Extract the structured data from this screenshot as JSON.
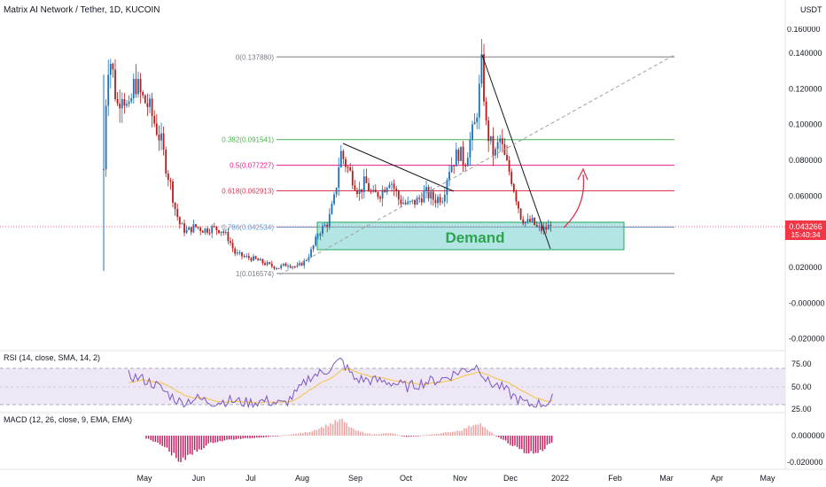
{
  "header": {
    "title": "Matrix AI Network / Tether, 1D, KUCOIN"
  },
  "price_axis": {
    "unit": "USDT",
    "ticks": [
      "0.140000",
      "0.120000",
      "0.100000",
      "0.080000",
      "0.060000",
      "0.040000",
      "0.020000",
      "-0.000000",
      "-0.020000"
    ],
    "tick_values": [
      0.14,
      0.12,
      0.1,
      0.08,
      0.06,
      0.04,
      0.02,
      0.0,
      -0.02
    ],
    "top_partial_tick": "0.160000",
    "current_price": "0.043266",
    "countdown": "15:40:34"
  },
  "time_axis": {
    "labels": [
      "May",
      "Jun",
      "Jul",
      "Aug",
      "Sep",
      "Oct",
      "Nov",
      "Dec",
      "2022",
      "Feb",
      "Mar",
      "Apr",
      "May"
    ]
  },
  "fibonacci": [
    {
      "ratio": "0",
      "label": "0(0.137880)",
      "price": 0.13788,
      "color": "#787b86"
    },
    {
      "ratio": "0.382",
      "label": "0.382(0.091541)",
      "price": 0.091541,
      "color": "#4caf50"
    },
    {
      "ratio": "0.5",
      "label": "0.5(0.077227)",
      "price": 0.077227,
      "color": "#e91e8c"
    },
    {
      "ratio": "0.618",
      "label": "0.618(0.062913)",
      "price": 0.062913,
      "color": "#e0334d"
    },
    {
      "ratio": "0.786",
      "label": "0.786(0.042534)",
      "price": 0.042534,
      "color": "#5b9bd5"
    },
    {
      "ratio": "1",
      "label": "1(0.016574)",
      "price": 0.016574,
      "color": "#787b86"
    }
  ],
  "annotations": {
    "demand_label": "Demand"
  },
  "rsi": {
    "title": "RSI (14, close, SMA, 14, 2)",
    "ticks": [
      "75.00",
      "50.00",
      "25.00"
    ]
  },
  "macd": {
    "title": "MACD (12, 26, close, 9, EMA, EMA)",
    "ticks": [
      "0.000000",
      "-0.020000"
    ]
  },
  "colors": {
    "up": "#26a69a",
    "down": "#ef5350",
    "candle_up": "#1e6fb5",
    "candle_down": "#b71c1c",
    "demand_fill": "#7fd3d0",
    "demand_border": "#26a65b",
    "demand_text": "#2ea44f",
    "rsi_line": "#7e57c2",
    "rsi_band": "#ede7f6",
    "price_tag": "#f23645"
  },
  "chart_data": [
    {
      "type": "candlestick",
      "title": "Matrix AI Network / Tether, 1D, KUCOIN",
      "ylabel": "USDT",
      "ylim": [
        -0.02,
        0.16
      ],
      "x_labels": [
        "May",
        "Jun",
        "Jul",
        "Aug",
        "Sep",
        "Oct",
        "Nov",
        "Dec",
        "2022",
        "Feb",
        "Mar",
        "Apr",
        "May"
      ],
      "approx_close_path": [
        {
          "x": "late Apr",
          "y": 0.12
        },
        {
          "x": "early May",
          "y": 0.13
        },
        {
          "x": "mid May",
          "y": 0.1
        },
        {
          "x": "late May",
          "y": 0.07
        },
        {
          "x": "early Jun",
          "y": 0.045
        },
        {
          "x": "mid Jun",
          "y": 0.04
        },
        {
          "x": "late Jun",
          "y": 0.035
        },
        {
          "x": "early Jul",
          "y": 0.025
        },
        {
          "x": "mid Jul",
          "y": 0.022
        },
        {
          "x": "late Jul",
          "y": 0.018
        },
        {
          "x": "early Aug",
          "y": 0.02
        },
        {
          "x": "mid Aug",
          "y": 0.04
        },
        {
          "x": "late Aug",
          "y": 0.085
        },
        {
          "x": "early Sep",
          "y": 0.07
        },
        {
          "x": "mid Sep",
          "y": 0.06
        },
        {
          "x": "early Oct",
          "y": 0.058
        },
        {
          "x": "mid Oct",
          "y": 0.056
        },
        {
          "x": "late Oct",
          "y": 0.08
        },
        {
          "x": "early Nov",
          "y": 0.09
        },
        {
          "x": "mid Nov",
          "y": 0.13
        },
        {
          "x": "late Nov",
          "y": 0.085
        },
        {
          "x": "early Dec",
          "y": 0.06
        },
        {
          "x": "mid Dec",
          "y": 0.045
        },
        {
          "x": "late Dec",
          "y": 0.043
        }
      ],
      "current_price": 0.043266,
      "fib_levels": [
        0.13788,
        0.091541,
        0.077227,
        0.062913,
        0.042534,
        0.016574
      ],
      "demand_zone": {
        "low": 0.031,
        "high": 0.046
      }
    },
    {
      "type": "line",
      "title": "RSI (14, close, SMA, 14, 2)",
      "ylim": [
        25,
        75
      ],
      "bands": [
        30,
        70
      ],
      "ticks": [
        75,
        50,
        25
      ]
    },
    {
      "type": "bar",
      "title": "MACD (12, 26, close, 9, EMA, EMA)",
      "ticks": [
        0.0,
        -0.02
      ]
    }
  ]
}
